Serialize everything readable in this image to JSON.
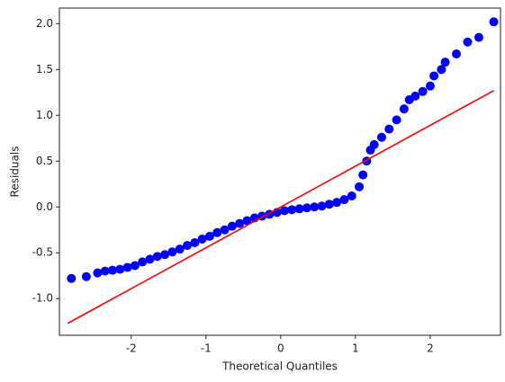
{
  "chart_data": {
    "type": "scatter",
    "xlabel": "Theoretical Quantiles",
    "ylabel": "Residuals",
    "xlim": [
      -2.96,
      2.94
    ],
    "ylim": [
      -1.4,
      2.17
    ],
    "xticks": [
      -2,
      -1,
      0,
      1,
      2
    ],
    "yticks": [
      {
        "value": -1.0,
        "label": "-1.0"
      },
      -0.5,
      {
        "value": 0.0,
        "label": "0.0"
      },
      0.5,
      {
        "value": 1.0,
        "label": "1.0"
      },
      1.5,
      {
        "value": 2.0,
        "label": "2.0"
      }
    ],
    "series": [
      {
        "color": "#0000ff",
        "x": [
          -2.8,
          -2.6,
          -2.45,
          -2.35,
          -2.25,
          -2.15,
          -2.05,
          -1.95,
          -1.85,
          -1.75,
          -1.65,
          -1.55,
          -1.45,
          -1.35,
          -1.25,
          -1.15,
          -1.05,
          -0.95,
          -0.85,
          -0.75,
          -0.65,
          -0.55,
          -0.45,
          -0.35,
          -0.25,
          -0.15,
          -0.05,
          0.05,
          0.15,
          0.25,
          0.35,
          0.45,
          0.55,
          0.65,
          0.75,
          0.85,
          0.95,
          1.05,
          1.1,
          1.15,
          1.2,
          1.25,
          1.35,
          1.45,
          1.55,
          1.65,
          1.72,
          1.8,
          1.9,
          2.0,
          2.05,
          2.15,
          2.2,
          2.35,
          2.5,
          2.65,
          2.85
        ],
        "values": [
          -0.78,
          -0.76,
          -0.72,
          -0.7,
          -0.69,
          -0.68,
          -0.66,
          -0.64,
          -0.6,
          -0.57,
          -0.54,
          -0.52,
          -0.49,
          -0.46,
          -0.42,
          -0.39,
          -0.35,
          -0.32,
          -0.28,
          -0.25,
          -0.21,
          -0.18,
          -0.15,
          -0.12,
          -0.1,
          -0.08,
          -0.06,
          -0.04,
          -0.03,
          -0.02,
          -0.01,
          0.0,
          0.01,
          0.03,
          0.05,
          0.08,
          0.12,
          0.22,
          0.35,
          0.5,
          0.62,
          0.68,
          0.76,
          0.85,
          0.95,
          1.07,
          1.17,
          1.21,
          1.26,
          1.32,
          1.43,
          1.5,
          1.58,
          1.67,
          1.8,
          1.85,
          2.02
        ]
      }
    ],
    "reference_line": {
      "color": "#ff0000",
      "x": [
        -2.85,
        2.85
      ],
      "values": [
        -1.27,
        1.27
      ]
    }
  }
}
